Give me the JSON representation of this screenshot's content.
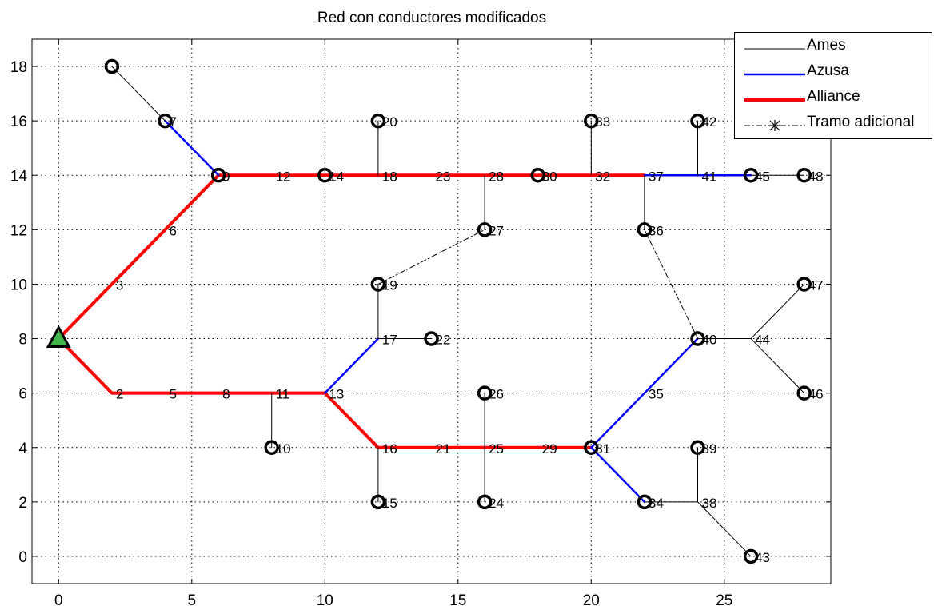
{
  "title": "Red con conductores modificados",
  "chart_data": {
    "type": "network",
    "title": "Red con conductores modificados",
    "xlim": [
      -1,
      29
    ],
    "ylim": [
      -1,
      19
    ],
    "x_ticks": [
      0,
      5,
      10,
      15,
      20,
      25
    ],
    "y_ticks": [
      0,
      2,
      4,
      6,
      8,
      10,
      12,
      14,
      16,
      18
    ],
    "grid": true,
    "legend_position": "top-right",
    "legend": [
      {
        "key": "ames",
        "label": "Ames",
        "color": "#000000"
      },
      {
        "key": "azusa",
        "label": "Azusa",
        "color": "#0000ff"
      },
      {
        "key": "alliance",
        "label": "Alliance",
        "color": "#ff0000"
      },
      {
        "key": "adicional",
        "label": "Tramo adicional",
        "color": "#000000"
      }
    ],
    "source": {
      "x": 0,
      "y": 8
    },
    "edges": [
      {
        "type": "alliance",
        "points": [
          [
            0,
            8
          ],
          [
            6,
            14
          ],
          [
            22,
            14
          ]
        ]
      },
      {
        "type": "alliance",
        "points": [
          [
            0,
            8
          ],
          [
            2,
            6
          ],
          [
            10,
            6
          ],
          [
            12,
            4
          ],
          [
            20,
            4
          ]
        ]
      },
      {
        "type": "azusa",
        "points": [
          [
            4,
            16
          ],
          [
            6,
            14
          ]
        ]
      },
      {
        "type": "azusa",
        "points": [
          [
            22,
            14
          ],
          [
            26,
            14
          ]
        ]
      },
      {
        "type": "azusa",
        "points": [
          [
            10,
            6
          ],
          [
            12,
            8
          ]
        ]
      },
      {
        "type": "azusa",
        "points": [
          [
            20,
            4
          ],
          [
            24,
            8
          ]
        ]
      },
      {
        "type": "azusa",
        "points": [
          [
            20,
            4
          ],
          [
            22,
            2
          ]
        ]
      },
      {
        "type": "ames",
        "points": [
          [
            2,
            18
          ],
          [
            4,
            16
          ]
        ]
      },
      {
        "type": "ames",
        "points": [
          [
            26,
            14
          ],
          [
            28,
            14
          ]
        ]
      },
      {
        "type": "ames",
        "points": [
          [
            12,
            14
          ],
          [
            12,
            16
          ]
        ]
      },
      {
        "type": "ames",
        "points": [
          [
            16,
            14
          ],
          [
            16,
            12
          ]
        ]
      },
      {
        "type": "ames",
        "points": [
          [
            20,
            14
          ],
          [
            20,
            16
          ]
        ]
      },
      {
        "type": "ames",
        "points": [
          [
            22,
            14
          ],
          [
            22,
            12
          ]
        ]
      },
      {
        "type": "ames",
        "points": [
          [
            24,
            14
          ],
          [
            24,
            16
          ]
        ]
      },
      {
        "type": "ames",
        "points": [
          [
            12,
            8
          ],
          [
            12,
            10
          ]
        ]
      },
      {
        "type": "ames",
        "points": [
          [
            12,
            8
          ],
          [
            14,
            8
          ]
        ]
      },
      {
        "type": "ames",
        "points": [
          [
            8,
            6
          ],
          [
            8,
            4
          ]
        ]
      },
      {
        "type": "ames",
        "points": [
          [
            12,
            4
          ],
          [
            12,
            2
          ]
        ]
      },
      {
        "type": "ames",
        "points": [
          [
            16,
            6
          ],
          [
            16,
            2
          ]
        ]
      },
      {
        "type": "ames",
        "points": [
          [
            24,
            8
          ],
          [
            26,
            8
          ]
        ]
      },
      {
        "type": "ames",
        "points": [
          [
            26,
            8
          ],
          [
            28,
            10
          ]
        ]
      },
      {
        "type": "ames",
        "points": [
          [
            26,
            8
          ],
          [
            28,
            6
          ]
        ]
      },
      {
        "type": "ames",
        "points": [
          [
            22,
            2
          ],
          [
            24,
            2
          ]
        ]
      },
      {
        "type": "ames",
        "points": [
          [
            24,
            2
          ],
          [
            24,
            4
          ]
        ]
      },
      {
        "type": "ames",
        "points": [
          [
            24,
            2
          ],
          [
            26,
            0
          ]
        ]
      },
      {
        "type": "adicional",
        "points": [
          [
            12,
            10
          ],
          [
            16,
            12
          ]
        ]
      },
      {
        "type": "adicional",
        "points": [
          [
            22,
            12
          ],
          [
            24,
            8
          ]
        ]
      }
    ],
    "nodes": [
      {
        "x": 2,
        "y": 18,
        "label": "",
        "terminal": true
      },
      {
        "x": 4,
        "y": 16,
        "label": "7",
        "terminal": true
      },
      {
        "x": 6,
        "y": 14,
        "label": "9",
        "terminal": true
      },
      {
        "x": 8,
        "y": 14,
        "label": "12",
        "terminal": false
      },
      {
        "x": 10,
        "y": 14,
        "label": "14",
        "terminal": true
      },
      {
        "x": 12,
        "y": 14,
        "label": "18",
        "terminal": false
      },
      {
        "x": 14,
        "y": 14,
        "label": "23",
        "terminal": false
      },
      {
        "x": 16,
        "y": 14,
        "label": "28",
        "terminal": false
      },
      {
        "x": 18,
        "y": 14,
        "label": "30",
        "terminal": true
      },
      {
        "x": 20,
        "y": 14,
        "label": "32",
        "terminal": false
      },
      {
        "x": 22,
        "y": 14,
        "label": "37",
        "terminal": false
      },
      {
        "x": 24,
        "y": 14,
        "label": "41",
        "terminal": false
      },
      {
        "x": 26,
        "y": 14,
        "label": "45",
        "terminal": true
      },
      {
        "x": 28,
        "y": 14,
        "label": "48",
        "terminal": true
      },
      {
        "x": 12,
        "y": 16,
        "label": "20",
        "terminal": true
      },
      {
        "x": 20,
        "y": 16,
        "label": "33",
        "terminal": true
      },
      {
        "x": 24,
        "y": 16,
        "label": "42",
        "terminal": true
      },
      {
        "x": 16,
        "y": 12,
        "label": "27",
        "terminal": true
      },
      {
        "x": 22,
        "y": 12,
        "label": "36",
        "terminal": true
      },
      {
        "x": 4,
        "y": 12,
        "label": "6",
        "terminal": false
      },
      {
        "x": 2,
        "y": 10,
        "label": "3",
        "terminal": false
      },
      {
        "x": 12,
        "y": 10,
        "label": "19",
        "terminal": true
      },
      {
        "x": 28,
        "y": 10,
        "label": "47",
        "terminal": true
      },
      {
        "x": 12,
        "y": 8,
        "label": "17",
        "terminal": false
      },
      {
        "x": 14,
        "y": 8,
        "label": "22",
        "terminal": true
      },
      {
        "x": 24,
        "y": 8,
        "label": "40",
        "terminal": true
      },
      {
        "x": 26,
        "y": 8,
        "label": "44",
        "terminal": false
      },
      {
        "x": 2,
        "y": 6,
        "label": "2",
        "terminal": false
      },
      {
        "x": 4,
        "y": 6,
        "label": "5",
        "terminal": false
      },
      {
        "x": 6,
        "y": 6,
        "label": "8",
        "terminal": false
      },
      {
        "x": 8,
        "y": 6,
        "label": "11",
        "terminal": false
      },
      {
        "x": 10,
        "y": 6,
        "label": "13",
        "terminal": false
      },
      {
        "x": 16,
        "y": 6,
        "label": "26",
        "terminal": true
      },
      {
        "x": 22,
        "y": 6,
        "label": "35",
        "terminal": false
      },
      {
        "x": 28,
        "y": 6,
        "label": "46",
        "terminal": true
      },
      {
        "x": 8,
        "y": 4,
        "label": "10",
        "terminal": true
      },
      {
        "x": 12,
        "y": 4,
        "label": "16",
        "terminal": false
      },
      {
        "x": 14,
        "y": 4,
        "label": "21",
        "terminal": false
      },
      {
        "x": 16,
        "y": 4,
        "label": "25",
        "terminal": false
      },
      {
        "x": 18,
        "y": 4,
        "label": "29",
        "terminal": false
      },
      {
        "x": 20,
        "y": 4,
        "label": "31",
        "terminal": true
      },
      {
        "x": 24,
        "y": 4,
        "label": "39",
        "terminal": true
      },
      {
        "x": 12,
        "y": 2,
        "label": "15",
        "terminal": true
      },
      {
        "x": 16,
        "y": 2,
        "label": "24",
        "terminal": true
      },
      {
        "x": 22,
        "y": 2,
        "label": "34",
        "terminal": true
      },
      {
        "x": 24,
        "y": 2,
        "label": "38",
        "terminal": false
      },
      {
        "x": 26,
        "y": 0,
        "label": "43",
        "terminal": true
      }
    ]
  }
}
